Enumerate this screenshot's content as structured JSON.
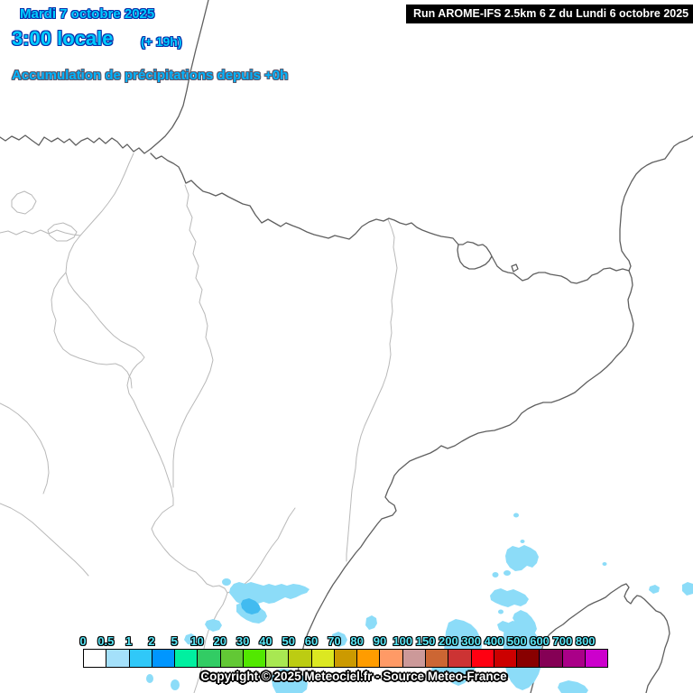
{
  "header": {
    "date_line": "Mardi 7 octobre 2025",
    "time_line": "3:00 locale",
    "offset_label": "(+ 19h)",
    "subtitle": "Accumulation de précipitations depuis +0h",
    "run_info": "Run AROME-IFS 2.5km 6 Z du Lundi 6 octobre 2025"
  },
  "legend": {
    "labels": [
      "0",
      "0.5",
      "1",
      "2",
      "5",
      "10",
      "20",
      "30",
      "40",
      "50",
      "60",
      "70",
      "80",
      "90",
      "100",
      "150",
      "200",
      "300",
      "400",
      "500",
      "600",
      "700",
      "800"
    ],
    "colors": [
      "#FFFFFF",
      "#A4E0FA",
      "#30C8F8",
      "#0096FF",
      "#00F0A0",
      "#32CC64",
      "#62C835",
      "#52E800",
      "#A8E852",
      "#BCCC12",
      "#DCE821",
      "#CC9A00",
      "#FF9C00",
      "#FF9A66",
      "#CC9999",
      "#CC6633",
      "#CC3333",
      "#FF0011",
      "#CC0000",
      "#880000",
      "#850055",
      "#AA0088",
      "#CC00CC"
    ]
  },
  "footer": {
    "copyright": "Copyright © 2025 Meteociel.fr - Source Meteo-France"
  },
  "map_colors": {
    "coastline": "#5f5f5f",
    "region_border": "#b9b9b9",
    "precip_light": "#8CDCF8",
    "precip_dark": "#41BBF0",
    "header_cyan": "#00CCFF",
    "header_outline": "#0A2FA8",
    "legend_tick_cyan": "#58E6F6"
  }
}
